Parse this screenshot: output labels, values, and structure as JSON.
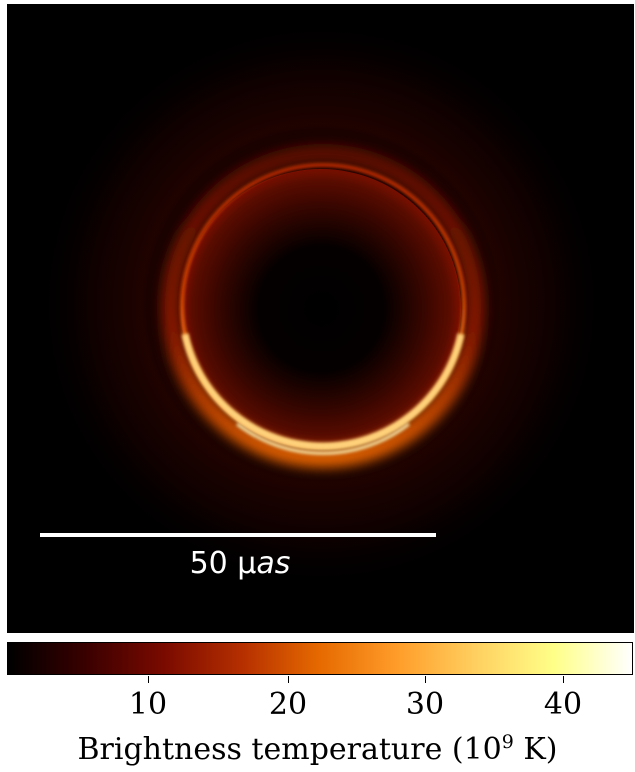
{
  "scalebar": {
    "value": "50 μ",
    "unit": "as"
  },
  "colorbar": {
    "colormap": "afmhot",
    "stops": [
      "#000000",
      "#3a0000",
      "#7a0a00",
      "#b52f00",
      "#e66a00",
      "#ff9d2a",
      "#ffd060",
      "#ffff88",
      "#ffffff"
    ],
    "tick_labels": [
      "10",
      "20",
      "30",
      "40"
    ],
    "title_main": "Brightness temperature (10",
    "title_exp": "9",
    "title_end": " K)"
  },
  "colors": {
    "background": "#000000",
    "ring_bright": "#ffb050",
    "ring_dim": "#8a1a00",
    "scalebar": "#ffffff"
  }
}
